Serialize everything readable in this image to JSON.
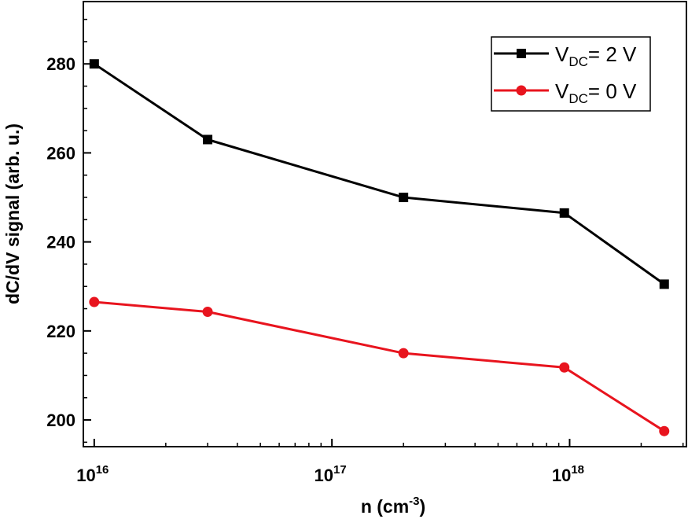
{
  "chart_data": {
    "type": "line",
    "xscale": "log",
    "xlim": [
      9000000000000000.0,
      3.1e+18
    ],
    "ylim": [
      194,
      294
    ],
    "xlabel": {
      "base": "n (cm",
      "sup": "-3",
      "end": ")"
    },
    "ylabel": "dC/dV signal (arb. u.)",
    "xticks": [
      {
        "value": 1e+16,
        "base": "10",
        "exp": "16"
      },
      {
        "value": 1e+17,
        "base": "10",
        "exp": "17"
      },
      {
        "value": 1e+18,
        "base": "10",
        "exp": "18"
      }
    ],
    "yticks": [
      200,
      220,
      240,
      260,
      280
    ],
    "legend_position": "top-right",
    "series": [
      {
        "name": "V_DC = 2 V",
        "label_main": "V",
        "label_sub": "DC",
        "label_rest": "= 2 V",
        "color": "#000000",
        "marker": "square",
        "x": [
          1e+16,
          3e+16,
          2e+17,
          9.5e+17,
          2.5e+18
        ],
        "y": [
          280,
          263,
          250,
          246.5,
          230.5
        ]
      },
      {
        "name": "V_DC = 0 V",
        "label_main": "V",
        "label_sub": "DC",
        "label_rest": "= 0 V",
        "color": "#e8141e",
        "marker": "circle",
        "x": [
          1e+16,
          3e+16,
          2e+17,
          9.5e+17,
          2.5e+18
        ],
        "y": [
          226.5,
          224.3,
          215,
          211.8,
          197.5
        ]
      }
    ]
  }
}
